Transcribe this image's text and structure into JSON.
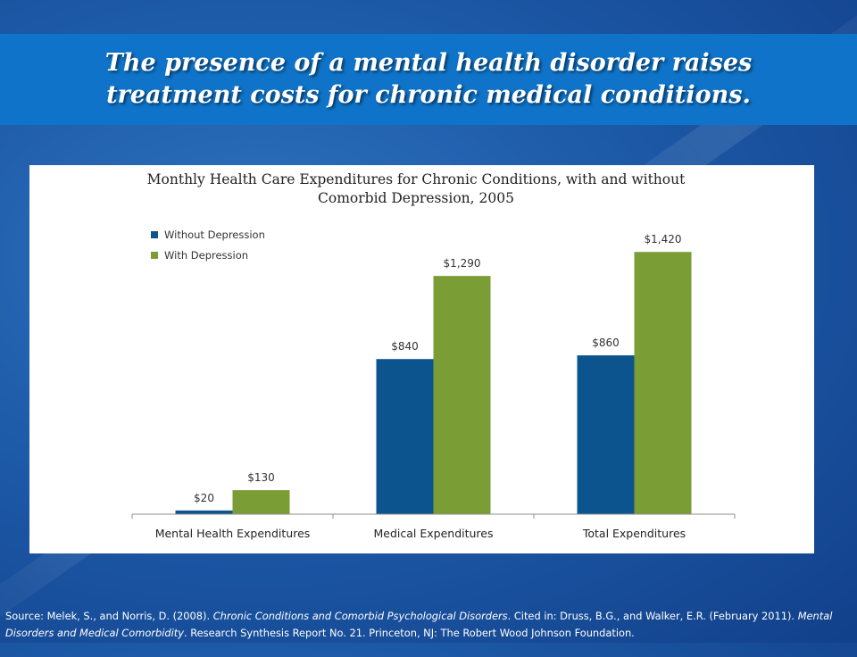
{
  "slide": {
    "title": "The presence of a mental health disorder raises treatment costs for chronic medical conditions."
  },
  "colors": {
    "background": "#1d5aa8",
    "title_bar": "#0f74c9",
    "series_without": "#0c548e",
    "series_with": "#7a9e35"
  },
  "chart_data": {
    "type": "bar",
    "title_line1": "Monthly Health Care Expenditures for Chronic Conditions, with and without",
    "title_line2": "Comorbid Depression, 2005",
    "categories": [
      "Mental Health Expenditures",
      "Medical Expenditures",
      "Total Expenditures"
    ],
    "series": [
      {
        "name": "Without Depression",
        "values": [
          20,
          840,
          860
        ],
        "labels": [
          "$20",
          "$840",
          "$860"
        ],
        "color": "#0c548e"
      },
      {
        "name": "With Depression",
        "values": [
          130,
          1290,
          1420
        ],
        "labels": [
          "$130",
          "$1,290",
          "$1,420"
        ],
        "color": "#7a9e35"
      }
    ],
    "ylim": [
      0,
      1600
    ],
    "grid": false,
    "legend_position": "top-left"
  },
  "source": {
    "p1": "Source: Melek, S., and Norris, D. (2008). ",
    "p2": "Chronic Conditions and Comorbid Psychological Disorders",
    "p3": ". Cited in: Druss, B.G., and Walker, E.R. (February 2011). ",
    "p4": "Mental Disorders and Medical Comorbidity",
    "p5": ". Research Synthesis Report No. 21. Princeton, NJ: The Robert Wood Johnson Foundation."
  }
}
